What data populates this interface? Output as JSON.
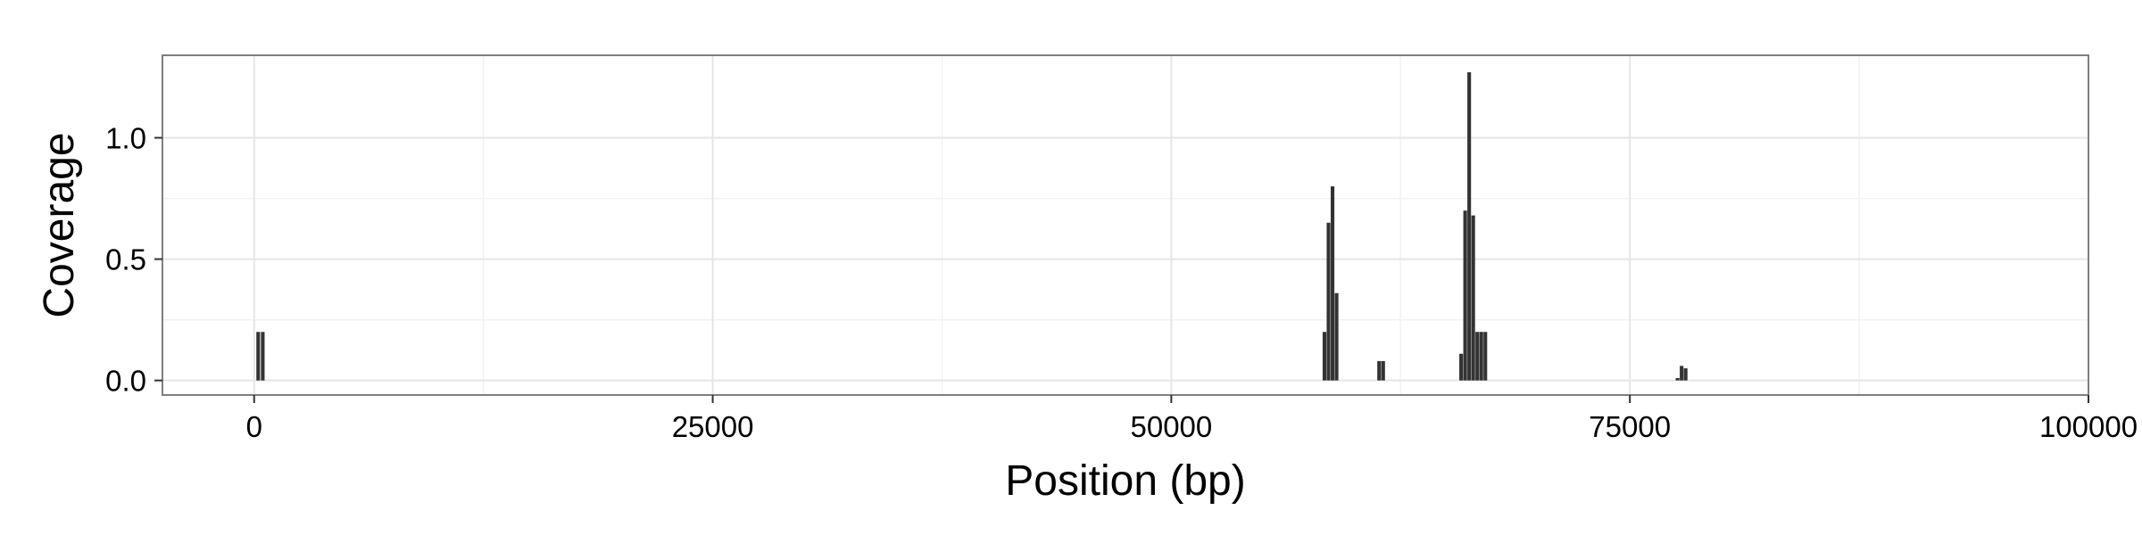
{
  "chart_data": {
    "type": "bar",
    "title": "",
    "xlabel": "Position (bp)",
    "ylabel": "Coverage",
    "xlim": [
      -5000,
      100000
    ],
    "ylim": [
      -0.06,
      1.34
    ],
    "x_ticks": [
      0,
      25000,
      50000,
      75000,
      100000
    ],
    "x_tick_labels": [
      "0",
      "25000",
      "50000",
      "75000",
      "100000"
    ],
    "y_ticks": [
      0.0,
      0.5,
      1.0
    ],
    "y_tick_labels": [
      "0.0",
      "0.5",
      "1.0"
    ],
    "grid": true,
    "bar_width": 200,
    "bar_color": "#333333",
    "points": [
      {
        "x": 220,
        "y": 0.2
      },
      {
        "x": 470,
        "y": 0.2
      },
      {
        "x": 58350,
        "y": 0.2
      },
      {
        "x": 58570,
        "y": 0.65
      },
      {
        "x": 58790,
        "y": 0.8
      },
      {
        "x": 59010,
        "y": 0.36
      },
      {
        "x": 61330,
        "y": 0.08
      },
      {
        "x": 61550,
        "y": 0.08
      },
      {
        "x": 65800,
        "y": 0.11
      },
      {
        "x": 66020,
        "y": 0.7
      },
      {
        "x": 66240,
        "y": 1.27
      },
      {
        "x": 66460,
        "y": 0.68
      },
      {
        "x": 66680,
        "y": 0.2
      },
      {
        "x": 66900,
        "y": 0.2
      },
      {
        "x": 67120,
        "y": 0.2
      },
      {
        "x": 77600,
        "y": 0.01
      },
      {
        "x": 77820,
        "y": 0.06
      },
      {
        "x": 78040,
        "y": 0.05
      }
    ]
  },
  "colors": {
    "background": "#ffffff",
    "panel_border": "#7f7f7f",
    "grid_major": "#e5e5e5",
    "grid_minor": "#f2f2f2",
    "bars": "#333333",
    "tick_mark": "#333333"
  }
}
